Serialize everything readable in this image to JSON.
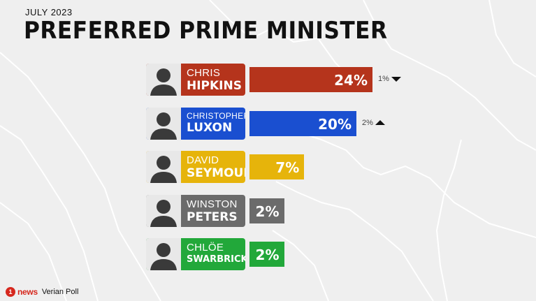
{
  "header": {
    "date": "JULY 2023",
    "title": "PREFERRED PRIME MINISTER"
  },
  "chart_data": {
    "type": "bar",
    "orientation": "horizontal",
    "title": "PREFERRED PRIME MINISTER",
    "subtitle": "JULY 2023",
    "xlim": [
      0,
      24
    ],
    "categories": [
      "CHRIS HIPKINS",
      "CHRISTOPHER LUXON",
      "DAVID SEYMOUR",
      "WINSTON PETERS",
      "CHLÖE SWARBRICK"
    ],
    "values": [
      24,
      20,
      7,
      2,
      2
    ],
    "entries": [
      {
        "first": "CHRIS",
        "last": "HIPKINS",
        "value": 24,
        "label": "24%",
        "color": "#b5341c",
        "change": "1%",
        "direction": "down"
      },
      {
        "first": "CHRISTOPHER",
        "last": "LUXON",
        "value": 20,
        "label": "20%",
        "color": "#1a4fd0",
        "change": "2%",
        "direction": "up"
      },
      {
        "first": "DAVID",
        "last": "SEYMOUR",
        "value": 7,
        "label": "7%",
        "color": "#e6b40b",
        "change": "",
        "direction": ""
      },
      {
        "first": "WINSTON",
        "last": "PETERS",
        "value": 2,
        "label": "2%",
        "color": "#6b6b6b",
        "change": "",
        "direction": ""
      },
      {
        "first": "CHLÖE",
        "last": "SWARBRICK",
        "value": 2,
        "label": "2%",
        "color": "#22a83a",
        "change": "",
        "direction": ""
      }
    ]
  },
  "footer": {
    "logo_mark": "1",
    "logo_text": "news",
    "source": "Verian Poll"
  }
}
